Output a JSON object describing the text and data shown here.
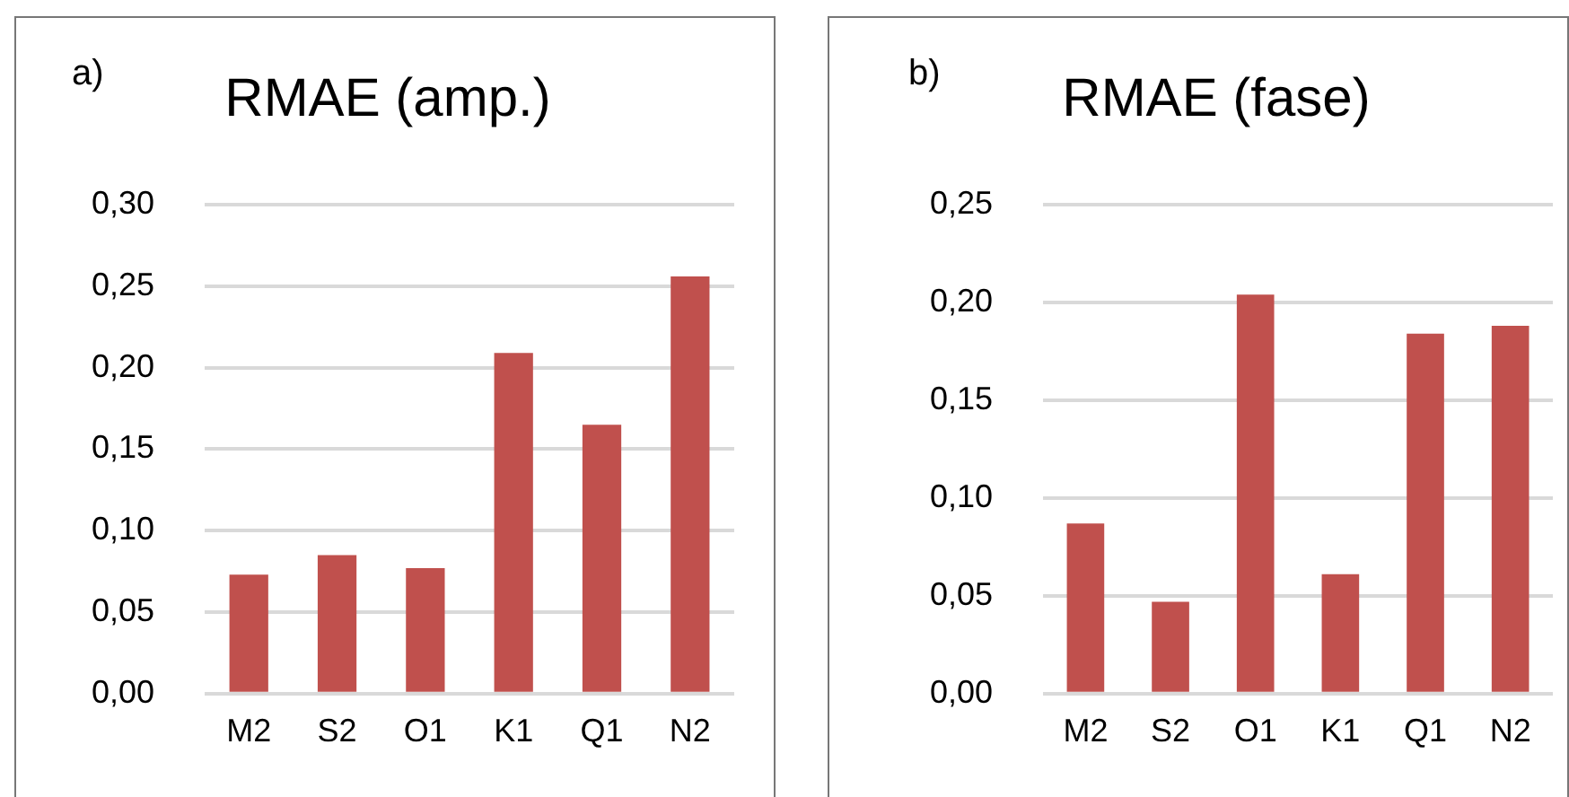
{
  "chart_data": [
    {
      "type": "bar",
      "title": "RMAE (amp.)",
      "annotations": [
        "a)"
      ],
      "categories": [
        "M2",
        "S2",
        "O1",
        "K1",
        "Q1",
        "N2"
      ],
      "values": [
        0.073,
        0.085,
        0.077,
        0.209,
        0.165,
        0.256
      ],
      "color": "#c0504d",
      "ylim": [
        0,
        0.3
      ],
      "yticks": [
        {
          "value": 0,
          "label": "0,00"
        },
        {
          "value": 0.05,
          "label": "0,05"
        },
        {
          "value": 0.1,
          "label": "0,10"
        },
        {
          "value": 0.15,
          "label": "0,15"
        },
        {
          "value": 0.2,
          "label": "0,20"
        },
        {
          "value": 0.25,
          "label": "0,25"
        },
        {
          "value": 0.3,
          "label": "0,30"
        }
      ],
      "grid": "y",
      "legend": false
    },
    {
      "type": "bar",
      "title": "RMAE (fase)",
      "annotations": [
        "b)"
      ],
      "categories": [
        "M2",
        "S2",
        "O1",
        "K1",
        "Q1",
        "N2"
      ],
      "values": [
        0.087,
        0.047,
        0.204,
        0.061,
        0.184,
        0.188
      ],
      "color": "#c0504d",
      "ylim": [
        0,
        0.25
      ],
      "yticks": [
        {
          "value": 0,
          "label": "0,00"
        },
        {
          "value": 0.05,
          "label": "0,05"
        },
        {
          "value": 0.1,
          "label": "0,10"
        },
        {
          "value": 0.15,
          "label": "0,15"
        },
        {
          "value": 0.2,
          "label": "0,20"
        },
        {
          "value": 0.25,
          "label": "0,25"
        }
      ],
      "grid": "y",
      "legend": false
    }
  ]
}
